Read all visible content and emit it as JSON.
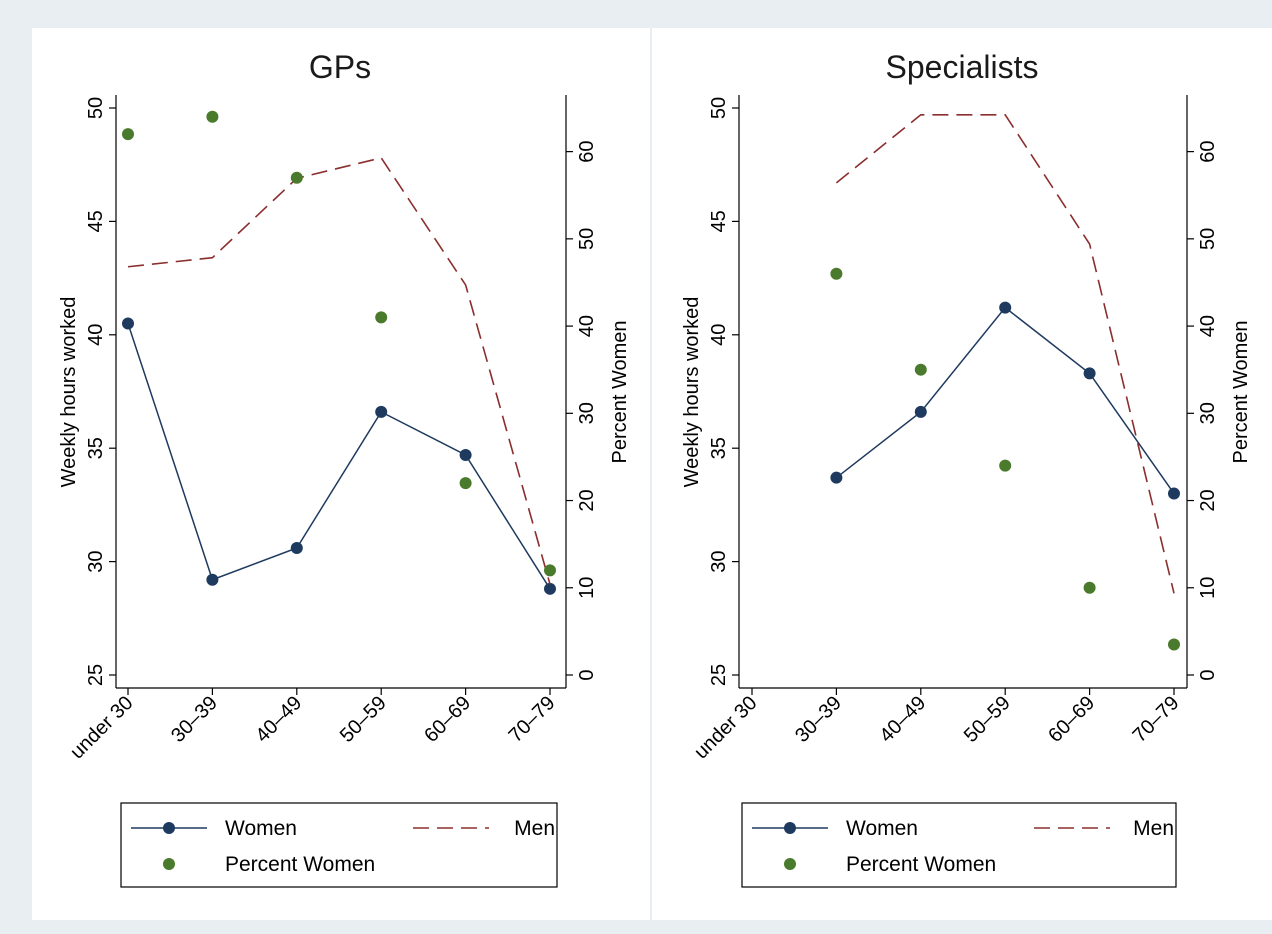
{
  "colors": {
    "women": "#1f3a5f",
    "men": "#8b2e2e",
    "percent_women": "#4a7a2c",
    "outer_background": "#e9eef2",
    "panel_background": "#ffffff"
  },
  "chart_data": [
    {
      "type": "line",
      "title": "GPs",
      "categories": [
        "under 30",
        "30–39",
        "40–49",
        "50–59",
        "60–69",
        "70–79"
      ],
      "ylabel": "Weekly hours worked",
      "y2label": "Percent Women",
      "ylim": [
        25,
        50
      ],
      "y2lim": [
        0,
        65
      ],
      "yticks": [
        "25",
        "30",
        "35",
        "40",
        "45",
        "50"
      ],
      "y2ticks": [
        "0",
        "10",
        "20",
        "30",
        "40",
        "50",
        "60"
      ],
      "series": [
        {
          "name": "Women",
          "axis": "left",
          "style": "solid-marker",
          "values": [
            40.5,
            29.2,
            30.6,
            36.6,
            34.7,
            28.8
          ]
        },
        {
          "name": "Men",
          "axis": "left",
          "style": "dashed",
          "values": [
            43.0,
            43.4,
            46.9,
            47.8,
            42.2,
            29.0
          ]
        },
        {
          "name": "Percent Women",
          "axis": "right",
          "style": "scatter",
          "values": [
            62,
            64,
            57,
            41,
            22,
            12
          ]
        }
      ],
      "legend": {
        "position": "bottom",
        "items": [
          "Women",
          "Men",
          "Percent Women"
        ]
      },
      "grid": false
    },
    {
      "type": "line",
      "title": "Specialists",
      "categories": [
        "under 30",
        "30–39",
        "40–49",
        "50–59",
        "60–69",
        "70–79"
      ],
      "ylabel": "Weekly hours worked",
      "y2label": "Percent Women",
      "ylim": [
        25,
        50
      ],
      "y2lim": [
        0,
        65
      ],
      "yticks": [
        "25",
        "30",
        "35",
        "40",
        "45",
        "50"
      ],
      "y2ticks": [
        "0",
        "10",
        "20",
        "30",
        "40",
        "50",
        "60"
      ],
      "series": [
        {
          "name": "Women",
          "axis": "left",
          "style": "solid-marker",
          "values": [
            null,
            33.7,
            36.6,
            41.2,
            38.3,
            33.0
          ]
        },
        {
          "name": "Men",
          "axis": "left",
          "style": "dashed",
          "values": [
            null,
            46.7,
            49.7,
            49.7,
            44.0,
            28.6
          ]
        },
        {
          "name": "Percent Women",
          "axis": "right",
          "style": "scatter",
          "values": [
            null,
            46,
            35,
            24,
            10,
            3.5
          ]
        }
      ],
      "legend": {
        "position": "bottom",
        "items": [
          "Women",
          "Men",
          "Percent Women"
        ]
      },
      "grid": false
    }
  ]
}
